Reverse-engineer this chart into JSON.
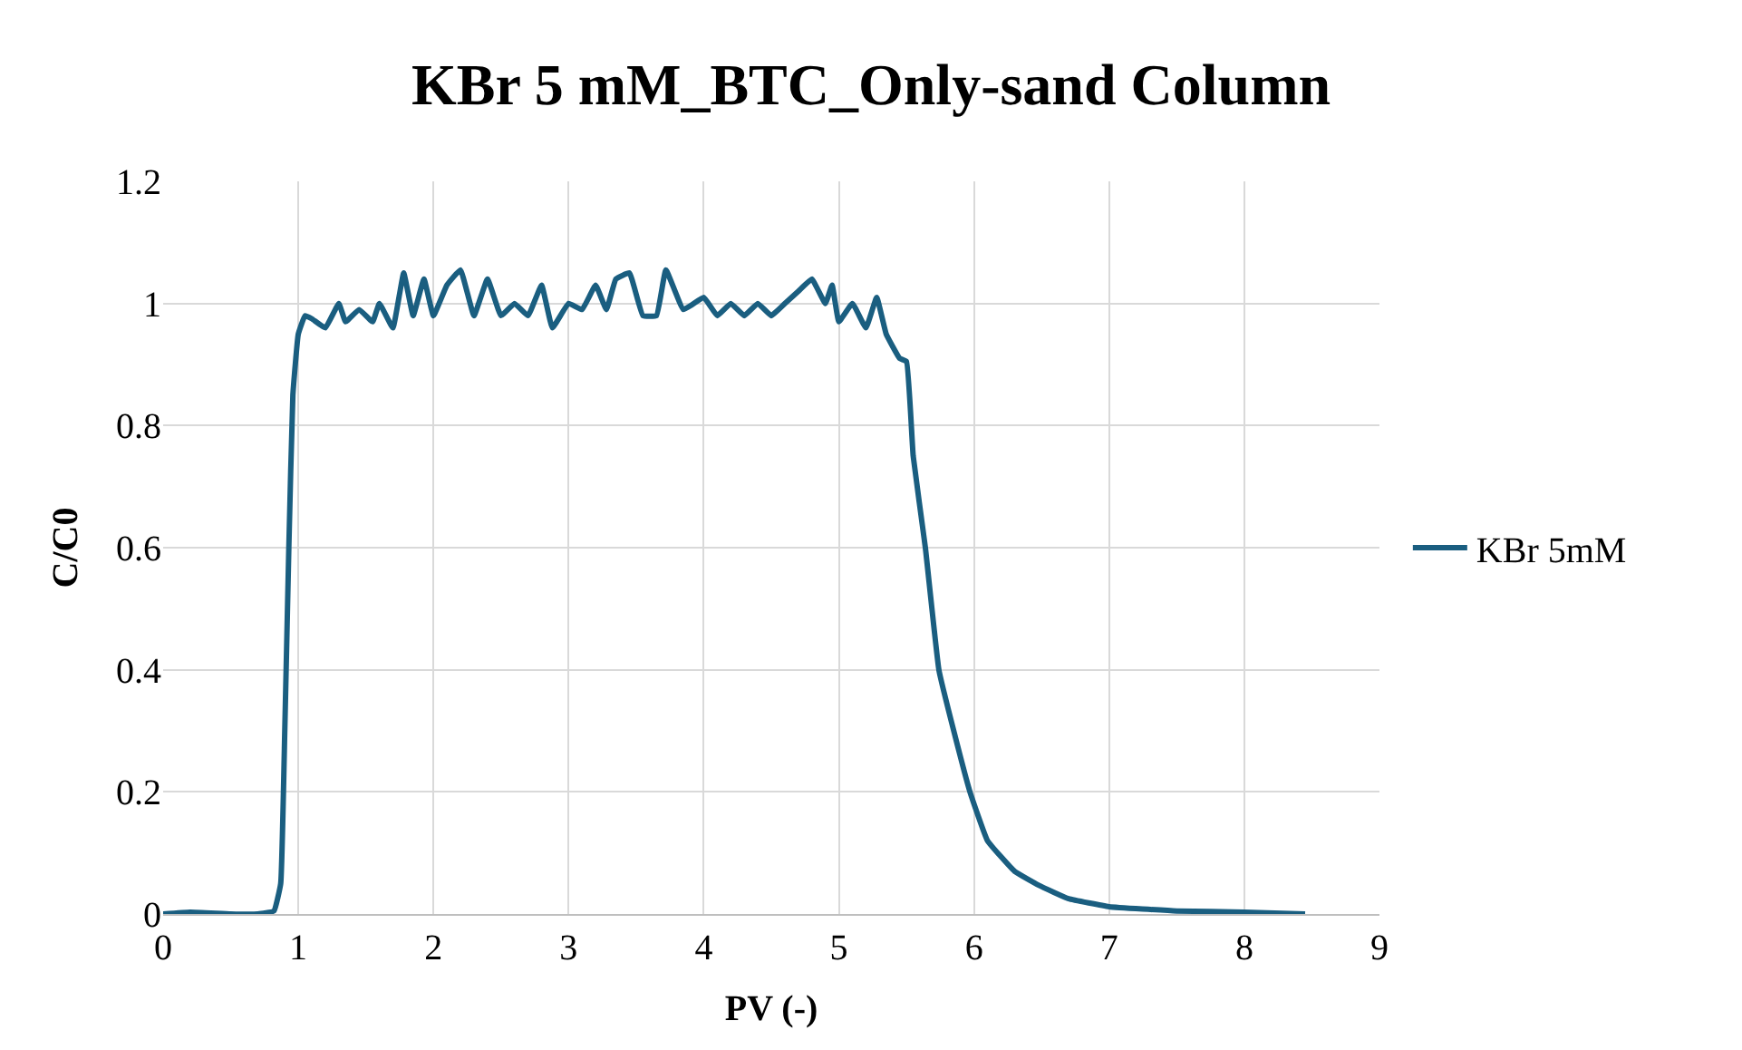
{
  "chart_data": {
    "type": "line",
    "title": "KBr 5 mM_BTC_Only-sand Column",
    "xlabel": "PV (-)",
    "ylabel": "C/C0",
    "xlim": [
      0,
      9
    ],
    "xticks": [
      0,
      1,
      2,
      3,
      4,
      5,
      6,
      7,
      8,
      9
    ],
    "ylim": [
      0,
      1.2
    ],
    "yticks": [
      {
        "value": 0,
        "label": "0"
      },
      0.2,
      0.4,
      0.6,
      0.8,
      {
        "value": 1,
        "label": "1"
      },
      1.2
    ],
    "grid": true,
    "legend": "right",
    "marker": "none",
    "line_style": "solid",
    "series": [
      {
        "name": "KBr 5mM",
        "color": "#1a5e80",
        "x": [
          0,
          0.2,
          0.5,
          0.7,
          0.82,
          0.87,
          0.9,
          0.93,
          0.96,
          1.0,
          1.05,
          1.1,
          1.2,
          1.3,
          1.35,
          1.45,
          1.55,
          1.6,
          1.7,
          1.78,
          1.85,
          1.93,
          2.0,
          2.1,
          2.2,
          2.3,
          2.4,
          2.5,
          2.6,
          2.7,
          2.8,
          2.88,
          3.0,
          3.1,
          3.2,
          3.28,
          3.35,
          3.45,
          3.55,
          3.65,
          3.72,
          3.85,
          4.0,
          4.1,
          4.2,
          4.3,
          4.4,
          4.5,
          4.6,
          4.7,
          4.8,
          4.9,
          4.95,
          5.0,
          5.1,
          5.2,
          5.28,
          5.35,
          5.45,
          5.5,
          5.55,
          5.64,
          5.74,
          5.85,
          5.97,
          6.1,
          6.3,
          6.48,
          6.7,
          7.0,
          7.5,
          8.0,
          8.45
        ],
        "values": [
          0,
          0.003,
          0,
          0,
          0.005,
          0.05,
          0.3,
          0.6,
          0.85,
          0.95,
          0.98,
          0.975,
          0.96,
          1.0,
          0.97,
          0.99,
          0.97,
          1.0,
          0.96,
          1.05,
          0.98,
          1.04,
          0.98,
          1.03,
          1.055,
          0.98,
          1.04,
          0.98,
          1.0,
          0.98,
          1.03,
          0.96,
          1.0,
          0.99,
          1.03,
          0.99,
          1.04,
          1.05,
          0.98,
          0.98,
          1.055,
          0.99,
          1.01,
          0.98,
          1.0,
          0.98,
          1.0,
          0.98,
          1.0,
          1.02,
          1.04,
          1.0,
          1.03,
          0.97,
          1.0,
          0.96,
          1.01,
          0.95,
          0.91,
          0.905,
          0.75,
          0.6,
          0.4,
          0.3,
          0.2,
          0.12,
          0.07,
          0.047,
          0.025,
          0.012,
          0.005,
          0.003,
          0
        ]
      }
    ]
  }
}
